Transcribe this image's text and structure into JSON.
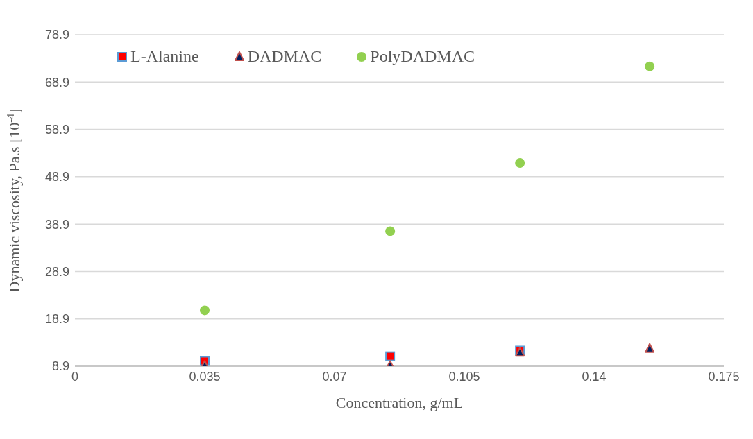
{
  "chart_data": {
    "type": "scatter",
    "xlabel": "Concentration, g/mL",
    "ylabel": "Dynamic viscosity, Pa.s [10$^{-4}$]",
    "x": [
      0.035,
      0.085,
      0.12,
      0.155
    ],
    "series": [
      {
        "name": "L-Alanine",
        "color": "#ff0000",
        "marker": "square",
        "values": [
          10.0,
          11.0,
          12.2,
          null
        ]
      },
      {
        "name": "DADMAC",
        "color": "#002060",
        "marker": "triangle",
        "values": [
          9.0,
          9.0,
          11.8,
          12.6
        ]
      },
      {
        "name": "PolyDADMAC",
        "color": "#92d050",
        "marker": "circle",
        "values": [
          20.7,
          37.4,
          51.8,
          72.2
        ]
      }
    ],
    "xlim": [
      0,
      0.175
    ],
    "xticks": [
      0,
      0.035,
      0.07,
      0.105,
      0.14,
      0.175
    ],
    "ylim": [
      8.9,
      78.9
    ],
    "yticks": [
      8.9,
      18.9,
      28.9,
      38.9,
      48.9,
      58.9,
      68.9,
      78.9
    ],
    "grid": "y",
    "legend": "top left"
  }
}
